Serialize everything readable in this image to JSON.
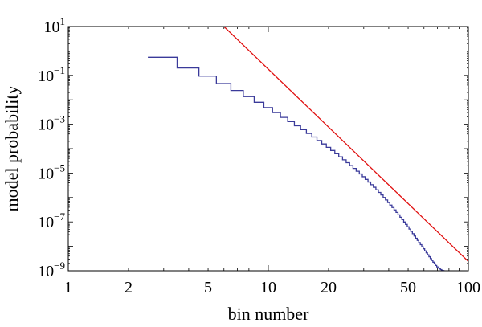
{
  "chart_data": {
    "type": "line",
    "title": "",
    "xlabel": "bin number",
    "ylabel": "model probability",
    "x_scale": "log",
    "y_scale": "log",
    "xlim": [
      1,
      100
    ],
    "ylim": [
      1e-09,
      10
    ],
    "grid": false,
    "x_tick_values": [
      1,
      2,
      5,
      10,
      20,
      50,
      100
    ],
    "x_tick_labels": [
      "1",
      "2",
      "5",
      "10",
      "20",
      "50",
      "100"
    ],
    "y_tick_values": [
      1e-09,
      1e-07,
      1e-05,
      0.001,
      0.1,
      10
    ],
    "y_tick_labels": [
      {
        "base": "10",
        "exp": "−9"
      },
      {
        "base": "10",
        "exp": "−7"
      },
      {
        "base": "10",
        "exp": "−5"
      },
      {
        "base": "10",
        "exp": "−3"
      },
      {
        "base": "10",
        "exp": "−1"
      },
      {
        "base": "10",
        "exp": "1"
      }
    ],
    "series": [
      {
        "kind": "step",
        "color": "#3a3a9a",
        "x_start": 2.5,
        "x_end": 100,
        "bins": [
          3,
          4,
          5,
          6,
          7,
          8,
          9,
          10,
          11,
          12,
          13,
          14,
          15,
          16,
          17,
          18,
          19,
          20,
          21,
          22,
          23,
          24,
          25,
          26,
          27,
          28,
          29,
          30,
          31,
          32,
          33,
          34,
          35,
          36,
          37,
          38,
          39,
          40,
          41,
          42,
          43,
          44,
          45,
          46,
          47,
          48,
          49,
          50,
          51,
          52,
          53,
          54,
          55,
          56,
          57,
          58,
          59,
          60,
          61,
          62,
          63,
          64,
          65,
          66,
          67,
          68,
          69,
          70,
          71,
          72,
          73,
          74,
          75,
          76,
          77,
          78,
          79,
          80,
          81,
          82,
          83,
          84,
          85,
          86,
          87,
          88,
          89,
          90,
          91,
          92,
          93,
          94,
          95,
          96,
          97,
          98,
          99,
          100
        ],
        "values": [
          0.55,
          0.2,
          0.093,
          0.046,
          0.024,
          0.0135,
          0.0079,
          0.0048,
          0.003,
          0.0019,
          0.00128,
          0.00087,
          0.0006,
          0.00042,
          0.0003,
          0.000215,
          0.000155,
          0.000113,
          8.4e-05,
          6.2e-05,
          4.65e-05,
          3.5e-05,
          2.65e-05,
          2.02e-05,
          1.55e-05,
          1.19e-05,
          9.2e-06,
          7.1e-06,
          5.5e-06,
          4.3e-06,
          3.35e-06,
          2.62e-06,
          2.05e-06,
          1.61e-06,
          1.27e-06,
          1e-06,
          7.9e-07,
          6.2e-07,
          4.9e-07,
          3.9e-07,
          3.1e-07,
          2.45e-07,
          1.95e-07,
          1.55e-07,
          1.24e-07,
          9.9e-08,
          7.9e-08,
          6.3e-08,
          5.1e-08,
          4.1e-08,
          3.3e-08,
          2.65e-08,
          2.15e-08,
          1.75e-08,
          1.43e-08,
          1.17e-08,
          9.6e-09,
          7.9e-09,
          6.5e-09,
          5.4e-09,
          4.5e-09,
          3.75e-09,
          3.15e-09,
          2.65e-09,
          2.25e-09,
          1.92e-09,
          1.65e-09,
          1.45e-09,
          1.3e-09,
          1.2e-09,
          1.12e-09,
          1.06e-09,
          1.02e-09,
          9.9e-10,
          9.6e-10,
          9.3e-10,
          9e-10,
          8.7e-10,
          8.4e-10,
          8.1e-10,
          7.8e-10,
          7.5e-10,
          7.2e-10,
          6.9e-10,
          6.6e-10,
          6.3e-10,
          6e-10,
          5.7e-10,
          5.4e-10,
          5.1e-10,
          4.8e-10,
          4.5e-10,
          4.2e-10,
          3.9e-10,
          3.6e-10,
          3.3e-10,
          3e-10,
          2.7e-10
        ]
      },
      {
        "kind": "line",
        "color": "#e01010",
        "x": [
          6.0,
          100
        ],
        "y": [
          10,
          2.4e-09
        ]
      }
    ]
  }
}
